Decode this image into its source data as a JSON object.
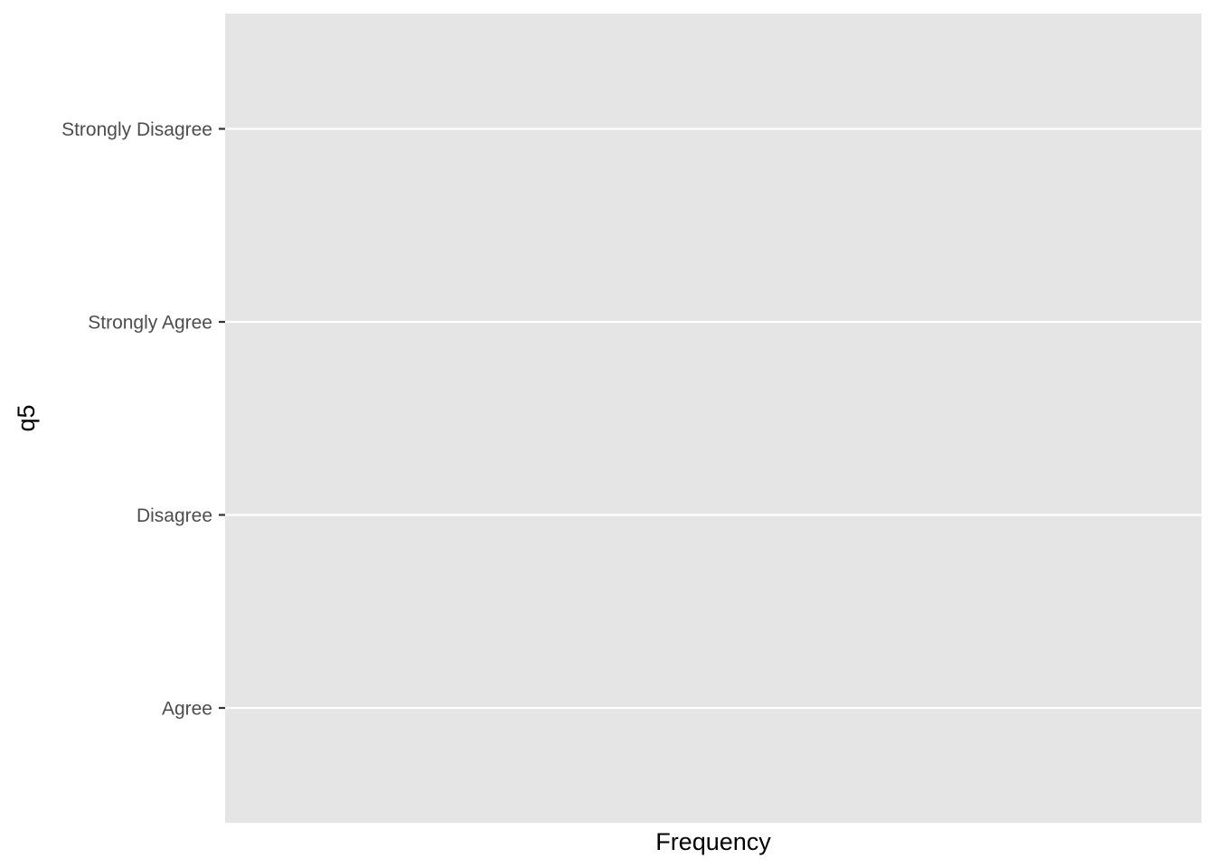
{
  "chart_data": {
    "type": "bar",
    "orientation": "horizontal",
    "title": "",
    "xlabel": "Frequency",
    "ylabel": "q5",
    "categories": [
      "Agree",
      "Disagree",
      "Strongly Agree",
      "Strongly Disagree"
    ],
    "series": [],
    "grid": true,
    "legend": "none",
    "colors": {
      "panel_background": "#e5e5e5",
      "grid_line": "#ffffff",
      "tick_label": "#4d4d4d",
      "tick_mark": "#333333",
      "axis_title": "#000000",
      "page_background": "#ffffff"
    }
  }
}
